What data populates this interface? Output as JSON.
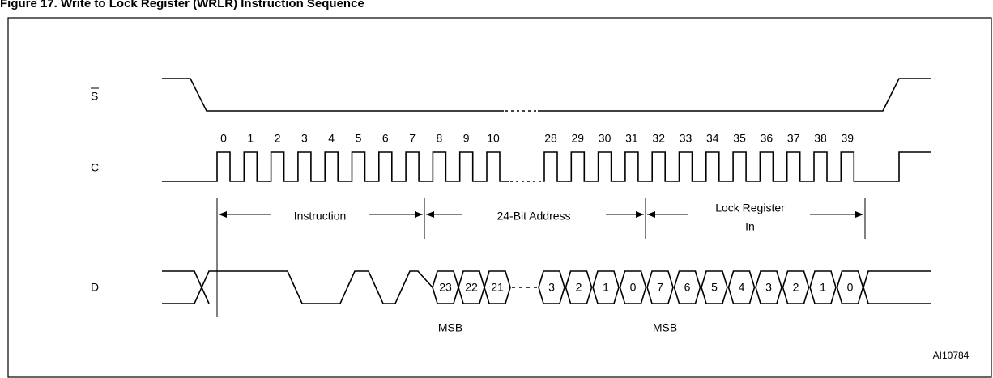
{
  "title": "Figure 17. Write to Lock Register (WRLR) Instruction Sequence",
  "signals": [
    "S",
    "C",
    "D"
  ],
  "clock_numbers_first": [
    0,
    1,
    2,
    3,
    4,
    5,
    6,
    7,
    8,
    9,
    10
  ],
  "clock_numbers_second": [
    28,
    29,
    30,
    31,
    32,
    33,
    34,
    35,
    36,
    37,
    38,
    39
  ],
  "phases": {
    "instruction": "Instruction",
    "address": "24-Bit Address",
    "lock_register": [
      "Lock Register",
      "In"
    ]
  },
  "address_bits": [
    23,
    22,
    21
  ],
  "tail_bits": [
    3,
    2,
    1,
    0,
    7,
    6,
    5,
    4,
    3,
    2,
    1,
    0
  ],
  "msb_labels": [
    "MSB",
    "MSB"
  ],
  "figure_id": "AI10784"
}
